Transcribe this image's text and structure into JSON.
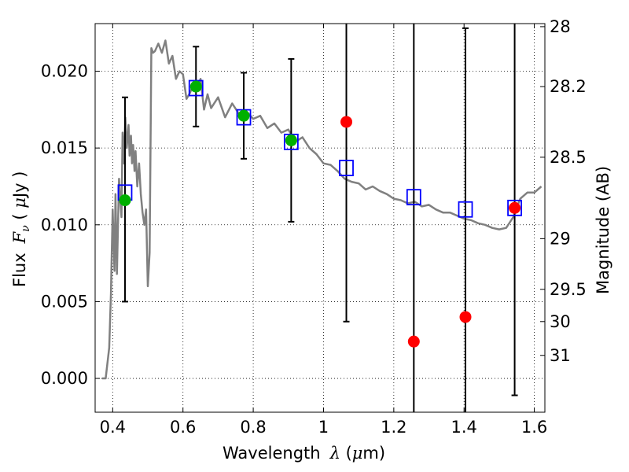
{
  "chart_data": {
    "type": "scatter",
    "xlabel": "Wavelength",
    "ylabel": "Flux",
    "y2label": "Magnitude (AB)",
    "xlim": [
      0.35,
      1.63
    ],
    "ylim": [
      -0.0022,
      0.0231
    ],
    "grid": true,
    "x_ticks": [
      {
        "value": 0.4,
        "label": "0.4"
      },
      {
        "value": 0.6,
        "label": "0.6"
      },
      {
        "value": 0.8,
        "label": "0.8"
      },
      {
        "value": 1.0,
        "label": "1"
      },
      {
        "value": 1.2,
        "label": "1.2"
      },
      {
        "value": 1.4,
        "label": "1.4"
      },
      {
        "value": 1.6,
        "label": "1.6"
      }
    ],
    "y_ticks": [
      {
        "value": 0.0,
        "label": "0.000"
      },
      {
        "value": 0.005,
        "label": "0.005"
      },
      {
        "value": 0.01,
        "label": "0.010"
      },
      {
        "value": 0.015,
        "label": "0.015"
      },
      {
        "value": 0.02,
        "label": "0.020"
      }
    ],
    "y2_ticks": [
      {
        "flux": 0.0229,
        "label": "28"
      },
      {
        "flux": 0.019,
        "label": "28.2"
      },
      {
        "flux": 0.0144,
        "label": "28.5"
      },
      {
        "flux": 0.0091,
        "label": "29"
      },
      {
        "flux": 0.0058,
        "label": "29.5"
      },
      {
        "flux": 0.0037,
        "label": "30"
      },
      {
        "flux": 0.0015,
        "label": "31"
      }
    ],
    "series": [
      {
        "kind": "line",
        "color": "#808080",
        "x": [
          0.37,
          0.38,
          0.39,
          0.395,
          0.4,
          0.405,
          0.408,
          0.412,
          0.418,
          0.422,
          0.425,
          0.428,
          0.432,
          0.436,
          0.44,
          0.445,
          0.448,
          0.452,
          0.455,
          0.458,
          0.462,
          0.465,
          0.47,
          0.475,
          0.48,
          0.485,
          0.49,
          0.495,
          0.5,
          0.505,
          0.51,
          0.515,
          0.52,
          0.53,
          0.54,
          0.55,
          0.56,
          0.57,
          0.58,
          0.59,
          0.6,
          0.61,
          0.62,
          0.63,
          0.64,
          0.65,
          0.66,
          0.67,
          0.68,
          0.7,
          0.72,
          0.74,
          0.76,
          0.78,
          0.8,
          0.82,
          0.84,
          0.86,
          0.88,
          0.9,
          0.92,
          0.94,
          0.96,
          0.98,
          1.0,
          1.02,
          1.04,
          1.06,
          1.08,
          1.1,
          1.12,
          1.14,
          1.16,
          1.18,
          1.2,
          1.22,
          1.24,
          1.26,
          1.28,
          1.3,
          1.32,
          1.34,
          1.36,
          1.38,
          1.4,
          1.42,
          1.44,
          1.46,
          1.48,
          1.5,
          1.52,
          1.54,
          1.56,
          1.58,
          1.6,
          1.62
        ],
        "y": [
          0.0,
          0.0,
          0.002,
          0.0055,
          0.011,
          0.007,
          0.012,
          0.0068,
          0.013,
          0.0115,
          0.0105,
          0.016,
          0.014,
          0.017,
          0.015,
          0.0165,
          0.0145,
          0.0158,
          0.014,
          0.0152,
          0.0135,
          0.0148,
          0.0125,
          0.014,
          0.012,
          0.0108,
          0.01,
          0.011,
          0.006,
          0.0082,
          0.0215,
          0.0212,
          0.0213,
          0.0218,
          0.0212,
          0.022,
          0.0205,
          0.021,
          0.0195,
          0.02,
          0.0198,
          0.0182,
          0.0186,
          0.0192,
          0.019,
          0.0195,
          0.0175,
          0.0185,
          0.0176,
          0.0183,
          0.017,
          0.0179,
          0.0172,
          0.0174,
          0.0169,
          0.0171,
          0.0163,
          0.0166,
          0.016,
          0.0162,
          0.0154,
          0.0157,
          0.015,
          0.0146,
          0.014,
          0.0139,
          0.0135,
          0.013,
          0.0128,
          0.0127,
          0.0123,
          0.0125,
          0.0122,
          0.012,
          0.0117,
          0.0116,
          0.0114,
          0.0115,
          0.0112,
          0.0113,
          0.011,
          0.0108,
          0.0108,
          0.0106,
          0.0104,
          0.0103,
          0.0101,
          0.01,
          0.0098,
          0.0097,
          0.0098,
          0.0105,
          0.0117,
          0.0121,
          0.0121,
          0.0125
        ]
      },
      {
        "kind": "errorbar",
        "color": "#000000",
        "x": [
          0.435,
          0.637,
          0.773,
          0.908,
          1.065,
          1.257,
          1.404,
          1.544
        ],
        "y_low": [
          0.005,
          0.0164,
          0.0143,
          0.0102,
          0.0037,
          -0.005,
          -0.005,
          -0.0011
        ],
        "y_high": [
          0.0183,
          0.0216,
          0.0199,
          0.0208,
          0.024,
          0.024,
          0.0228,
          0.024
        ]
      },
      {
        "kind": "markers",
        "marker": "open-square",
        "color": "#0000ff",
        "x": [
          0.435,
          0.637,
          0.773,
          0.908,
          1.065,
          1.257,
          1.404,
          1.544
        ],
        "y": [
          0.0121,
          0.0189,
          0.017,
          0.0154,
          0.0137,
          0.0118,
          0.011,
          0.0111
        ]
      },
      {
        "kind": "markers",
        "marker": "filled-circle",
        "color": "#00b000",
        "x": [
          0.435,
          0.637,
          0.773,
          0.908
        ],
        "y": [
          0.0116,
          0.019,
          0.0171,
          0.0155
        ]
      },
      {
        "kind": "markers",
        "marker": "filled-circle",
        "color": "#ff0000",
        "x": [
          1.065,
          1.257,
          1.404,
          1.544
        ],
        "y": [
          0.0167,
          0.0024,
          0.004,
          0.0111
        ]
      }
    ]
  }
}
